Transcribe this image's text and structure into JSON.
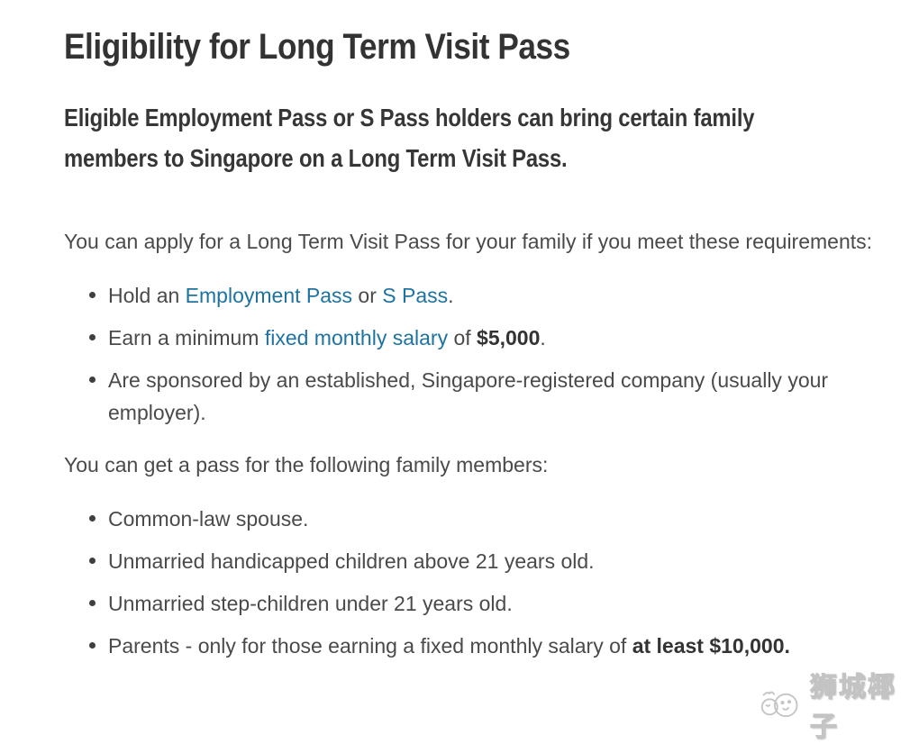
{
  "page": {
    "title": "Eligibility for Long Term Visit Pass",
    "lede_lines": [
      "Eligible Employment Pass or S Pass holders can bring certain family",
      "members to Singapore on a Long Term Visit Pass."
    ],
    "intro_requirements": "You can apply for a Long Term Visit Pass for your family if you meet these requirements:",
    "requirements": [
      {
        "segments": [
          {
            "t": "Hold an "
          },
          {
            "t": "Employment Pass",
            "link": true,
            "name": "employment-pass-link"
          },
          {
            "t": " or "
          },
          {
            "t": "S Pass",
            "link": true,
            "name": "s-pass-link"
          },
          {
            "t": "."
          }
        ]
      },
      {
        "segments": [
          {
            "t": "Earn a minimum "
          },
          {
            "t": "fixed monthly salary",
            "link": true,
            "name": "fixed-monthly-salary-link"
          },
          {
            "t": " of "
          },
          {
            "t": "$5,000",
            "bold": true
          },
          {
            "t": "."
          }
        ]
      },
      {
        "segments": [
          {
            "t": "Are sponsored by an established, Singapore-registered company (usually your employer)."
          }
        ]
      }
    ],
    "intro_family": "You can get a pass for the following family members:",
    "family_members": [
      {
        "segments": [
          {
            "t": "Common-law spouse."
          }
        ]
      },
      {
        "segments": [
          {
            "t": "Unmarried handicapped children above 21 years old."
          }
        ]
      },
      {
        "segments": [
          {
            "t": "Unmarried step-children under 21 years old."
          }
        ]
      },
      {
        "segments": [
          {
            "t": "Parents - only for those earning a fixed monthly salary of "
          },
          {
            "t": "at least $10,000.",
            "bold": true
          }
        ]
      }
    ]
  },
  "watermark": {
    "label": "狮城椰子",
    "icon": "coconut-mascot-icon"
  },
  "colors": {
    "heading_text": "#333333",
    "body_text": "#4a4a4a",
    "link_blue": "#1e73a1",
    "watermark_gray": "#c4c4c4",
    "background": "#ffffff"
  }
}
